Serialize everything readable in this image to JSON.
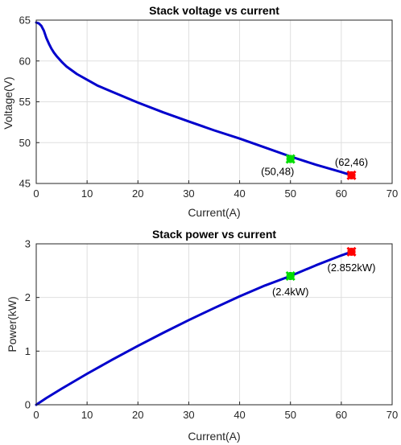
{
  "chart_data": [
    {
      "type": "line",
      "title": "Stack voltage vs current",
      "xlabel": "Current(A)",
      "ylabel": "Voltage(V)",
      "xlim": [
        0,
        70
      ],
      "ylim": [
        45,
        65
      ],
      "xticks": [
        "0",
        "10",
        "20",
        "30",
        "40",
        "50",
        "60",
        "70"
      ],
      "yticks": [
        "45",
        "50",
        "55",
        "60",
        "65"
      ],
      "grid": true,
      "series": [
        {
          "color": "#0000cc",
          "x": [
            0,
            0.5,
            1,
            1.5,
            2,
            2.5,
            3,
            3.5,
            4,
            5,
            6,
            8,
            10,
            12,
            15,
            20,
            25,
            30,
            35,
            40,
            45,
            50,
            55,
            60,
            62
          ],
          "y": [
            64.7,
            64.6,
            64.3,
            63.7,
            62.8,
            62.1,
            61.5,
            61.0,
            60.6,
            59.9,
            59.3,
            58.4,
            57.7,
            57.0,
            56.2,
            54.9,
            53.7,
            52.6,
            51.5,
            50.5,
            49.4,
            48.3,
            47.3,
            46.4,
            46.0
          ]
        }
      ],
      "markers": [
        {
          "x": 50,
          "y": 48,
          "color": "#00dd00",
          "label": "(50,48)"
        },
        {
          "x": 62,
          "y": 46,
          "color": "#ff0000",
          "label": "(62,46)"
        }
      ]
    },
    {
      "type": "line",
      "title": "Stack power vs current",
      "xlabel": "Current(A)",
      "ylabel": "Power(kW)",
      "xlim": [
        0,
        70
      ],
      "ylim": [
        0,
        3
      ],
      "xticks": [
        "0",
        "10",
        "20",
        "30",
        "40",
        "50",
        "60",
        "70"
      ],
      "yticks": [
        "0",
        "1",
        "2",
        "3"
      ],
      "grid": true,
      "series": [
        {
          "color": "#0000cc",
          "x": [
            0,
            2,
            5,
            10,
            15,
            20,
            25,
            30,
            35,
            40,
            45,
            50,
            55,
            60,
            62
          ],
          "y": [
            0,
            0.126,
            0.3,
            0.577,
            0.843,
            1.098,
            1.343,
            1.578,
            1.803,
            2.02,
            2.223,
            2.4,
            2.6,
            2.784,
            2.852
          ]
        }
      ],
      "markers": [
        {
          "x": 50,
          "y": 2.4,
          "color": "#00dd00",
          "label": "(2.4kW)"
        },
        {
          "x": 62,
          "y": 2.852,
          "color": "#ff0000",
          "label": "(2.852kW)"
        }
      ]
    }
  ]
}
